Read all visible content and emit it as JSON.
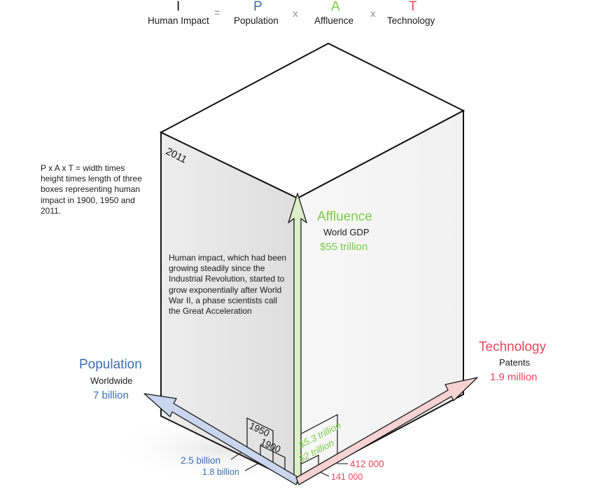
{
  "equation": {
    "impact": {
      "letter": "I",
      "label": "Human Impact"
    },
    "equals": "=",
    "population": {
      "letter": "P",
      "label": "Population"
    },
    "times1": "x",
    "affluence": {
      "letter": "A",
      "label": "Affluence"
    },
    "times2": "x",
    "technology": {
      "letter": "T",
      "label": "Technology"
    }
  },
  "side_note": "P x A x T = width times height times length of three boxes representing human impact in 1900, 1950 and 2011.",
  "box_note": "Human impact, which had been growing steadily since the Industrial Revolution, started to grow exponentially after World War II, a phase scientists call the  Great Acceleration",
  "years": {
    "y2011": "2011",
    "y1950": "1950",
    "y1900": "1900"
  },
  "axes": {
    "affluence": {
      "title": "Affluence",
      "subtitle": "World GDP",
      "value": "$55 trillion",
      "v1950": "$5.3 trillion",
      "v1900": "$2 trillion"
    },
    "population": {
      "title": "Population",
      "subtitle": "Worldwide",
      "value": "7 billion",
      "v1950": "2.5 billion",
      "v1900": "1.8 billion"
    },
    "technology": {
      "title": "Technology",
      "subtitle": "Patents",
      "value": "1.9 million",
      "v1950": "412 000",
      "v1900": "141 000"
    }
  },
  "colors": {
    "population": "#3a6fb3",
    "affluence": "#7ccb4a",
    "technology": "#e8485a",
    "operator": "#a9a9a9",
    "arrow_green_fill": "#dcefc8",
    "arrow_blue_fill": "#c9d6ee",
    "arrow_red_fill": "#f6d2d2"
  }
}
